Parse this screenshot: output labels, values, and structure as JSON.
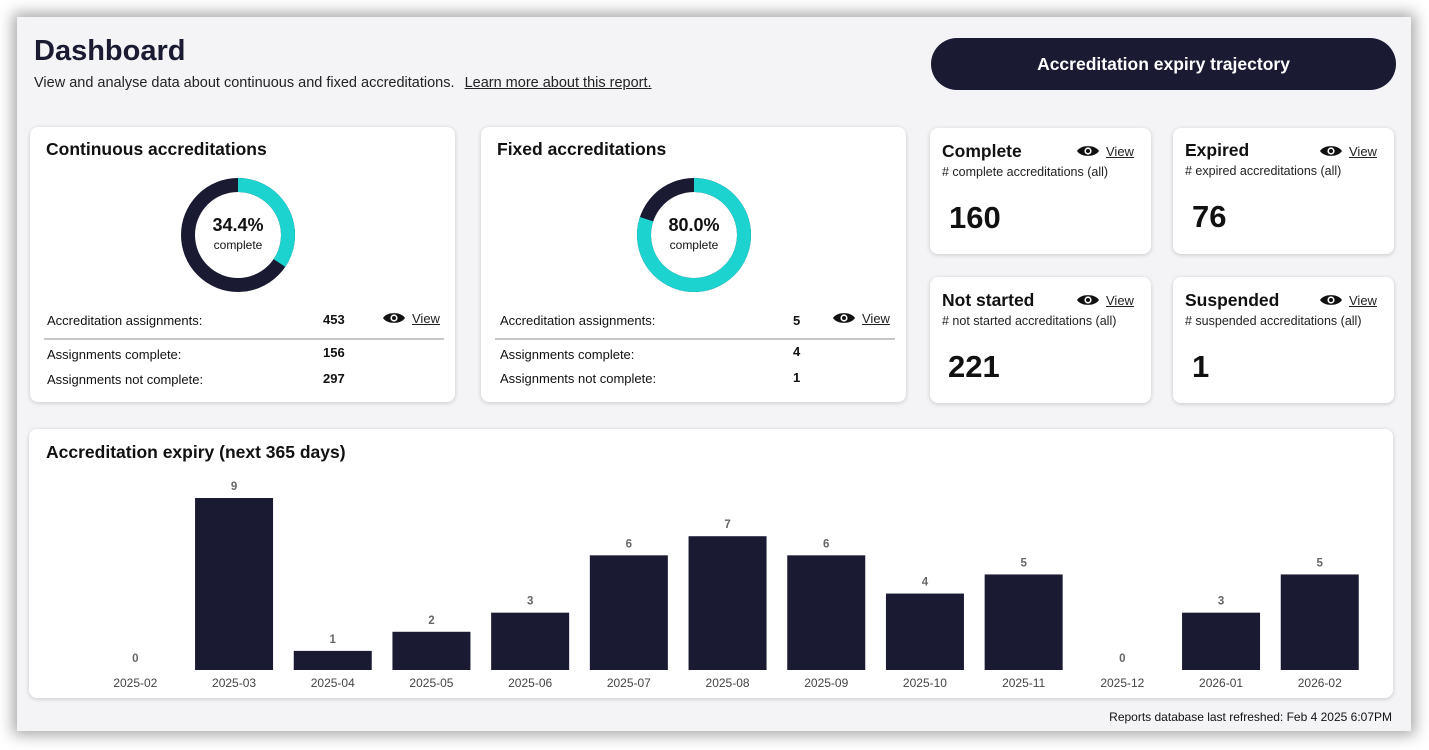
{
  "header": {
    "title": "Dashboard",
    "subtitle": "View and analyse data about continuous and fixed accreditations.",
    "learn_more": "Learn more about this report.",
    "trajectory_button": "Accreditation expiry trajectory"
  },
  "continuous": {
    "title": "Continuous accreditations",
    "percent_label": "34.4%",
    "percent_value": 34.4,
    "complete_word": "complete",
    "assignments_label": "Accreditation assignments:",
    "assignments_value": "453",
    "complete_label": "Assignments complete:",
    "complete_value": "156",
    "not_complete_label": "Assignments not complete:",
    "not_complete_value": "297",
    "view_label": "View"
  },
  "fixed": {
    "title": "Fixed accreditations",
    "percent_label": "80.0%",
    "percent_value": 80.0,
    "complete_word": "complete",
    "assignments_label": "Accreditation assignments:",
    "assignments_value": "5",
    "complete_label": "Assignments complete:",
    "complete_value": "4",
    "not_complete_label": "Assignments not complete:",
    "not_complete_value": "1",
    "view_label": "View"
  },
  "stats": {
    "complete": {
      "title": "Complete",
      "sub": "# complete accreditations (all)",
      "value": "160",
      "view_label": "View"
    },
    "expired": {
      "title": "Expired",
      "sub": "# expired accreditations (all)",
      "value": "76",
      "view_label": "View"
    },
    "not_started": {
      "title": "Not started",
      "sub": "# not started accreditations (all)",
      "value": "221",
      "view_label": "View"
    },
    "suspended": {
      "title": "Suspended",
      "sub": "# suspended accreditations (all)",
      "value": "1",
      "view_label": "View"
    }
  },
  "colors": {
    "navy": "#1a1a33",
    "teal": "#1dd3cf",
    "bar": "#1a1a33"
  },
  "chart_data": {
    "type": "bar",
    "title": "Accreditation expiry (next 365 days)",
    "categories": [
      "2025-02",
      "2025-03",
      "2025-04",
      "2025-05",
      "2025-06",
      "2025-07",
      "2025-08",
      "2025-09",
      "2025-10",
      "2025-11",
      "2025-12",
      "2026-01",
      "2026-02"
    ],
    "values": [
      0,
      9,
      1,
      2,
      3,
      6,
      7,
      6,
      4,
      5,
      0,
      3,
      5
    ],
    "ylim": [
      0,
      9
    ],
    "grid": false,
    "legend": "none"
  },
  "footer": {
    "refreshed": "Reports database last refreshed: Feb  4 2025  6:07PM"
  }
}
